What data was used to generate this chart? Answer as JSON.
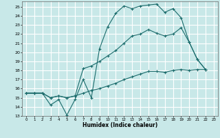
{
  "xlabel": "Humidex (Indice chaleur)",
  "bg_color": "#c8e8e8",
  "grid_color": "#ffffff",
  "line_color": "#1a6b6b",
  "xlim": [
    -0.5,
    23.5
  ],
  "ylim": [
    13,
    25.6
  ],
  "yticks": [
    13,
    14,
    15,
    16,
    17,
    18,
    19,
    20,
    21,
    22,
    23,
    24,
    25
  ],
  "xticks": [
    0,
    1,
    2,
    3,
    4,
    5,
    6,
    7,
    8,
    9,
    10,
    11,
    12,
    13,
    14,
    15,
    16,
    17,
    18,
    19,
    20,
    21,
    22,
    23
  ],
  "line1_x": [
    0,
    1,
    2,
    3,
    4,
    5,
    6,
    7,
    8,
    9,
    10,
    11,
    12,
    13,
    14,
    15,
    16,
    17,
    18,
    19,
    20,
    21,
    22
  ],
  "line1_y": [
    15.5,
    15.5,
    15.5,
    14.2,
    14.8,
    13.1,
    14.8,
    17.0,
    15.0,
    20.4,
    22.8,
    24.3,
    25.1,
    24.8,
    25.1,
    25.2,
    25.3,
    24.4,
    24.8,
    23.8,
    21.1,
    19.2,
    18.1
  ],
  "line2_x": [
    0,
    1,
    2,
    3,
    4,
    5,
    6,
    7,
    8,
    9,
    10,
    11,
    12,
    13,
    14,
    15,
    16,
    17,
    18,
    19,
    20,
    21,
    22
  ],
  "line2_y": [
    15.5,
    15.5,
    15.5,
    15.0,
    15.2,
    15.0,
    15.2,
    18.2,
    18.5,
    19.0,
    19.6,
    20.2,
    21.0,
    21.8,
    22.0,
    22.5,
    22.1,
    21.8,
    22.0,
    22.7,
    21.1,
    19.2,
    18.1
  ],
  "line3_x": [
    0,
    1,
    2,
    3,
    4,
    5,
    6,
    7,
    8,
    9,
    10,
    11,
    12,
    13,
    14,
    15,
    16,
    17,
    18,
    19,
    20,
    21,
    22
  ],
  "line3_y": [
    15.5,
    15.5,
    15.5,
    15.0,
    15.2,
    15.0,
    15.2,
    15.5,
    15.8,
    16.0,
    16.3,
    16.6,
    17.0,
    17.3,
    17.6,
    17.9,
    17.9,
    17.8,
    18.0,
    18.1,
    18.0,
    18.1,
    18.1
  ]
}
